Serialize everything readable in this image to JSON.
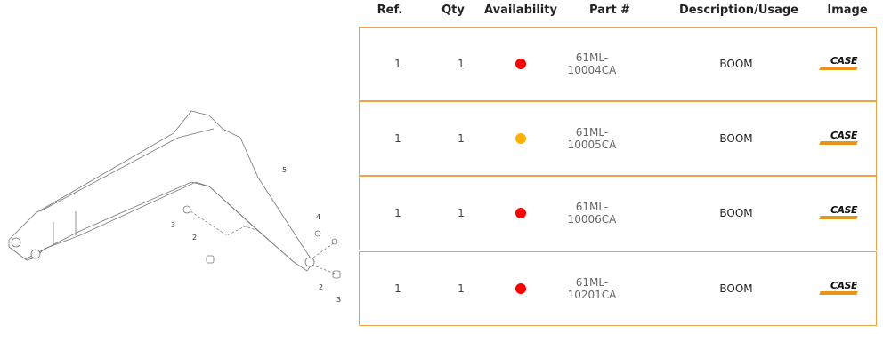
{
  "headers": {
    "ref": "Ref.",
    "qty": "Qty",
    "availability": "Availability",
    "part": "Part #",
    "description": "Description/Usage",
    "image": "Image"
  },
  "diagram": {
    "callouts": [
      "5",
      "4",
      "3",
      "2",
      "2",
      "3"
    ]
  },
  "rows": [
    {
      "ref": "1",
      "qty": "1",
      "availability_color": "#ff0000",
      "part": "61ML-10004CA",
      "description": "BOOM",
      "logo": "CASE"
    },
    {
      "ref": "1",
      "qty": "1",
      "availability_color": "#ffb000",
      "part": "61ML-10005CA",
      "description": "BOOM",
      "logo": "CASE"
    },
    {
      "ref": "1",
      "qty": "1",
      "availability_color": "#ff0000",
      "part": "61ML-10006CA",
      "description": "BOOM",
      "logo": "CASE"
    },
    {
      "ref": "1",
      "qty": "1",
      "availability_color": "#ff0000",
      "part": "61ML-10201CA",
      "description": "BOOM",
      "logo": "CASE"
    }
  ],
  "border_color": "#f0a448"
}
